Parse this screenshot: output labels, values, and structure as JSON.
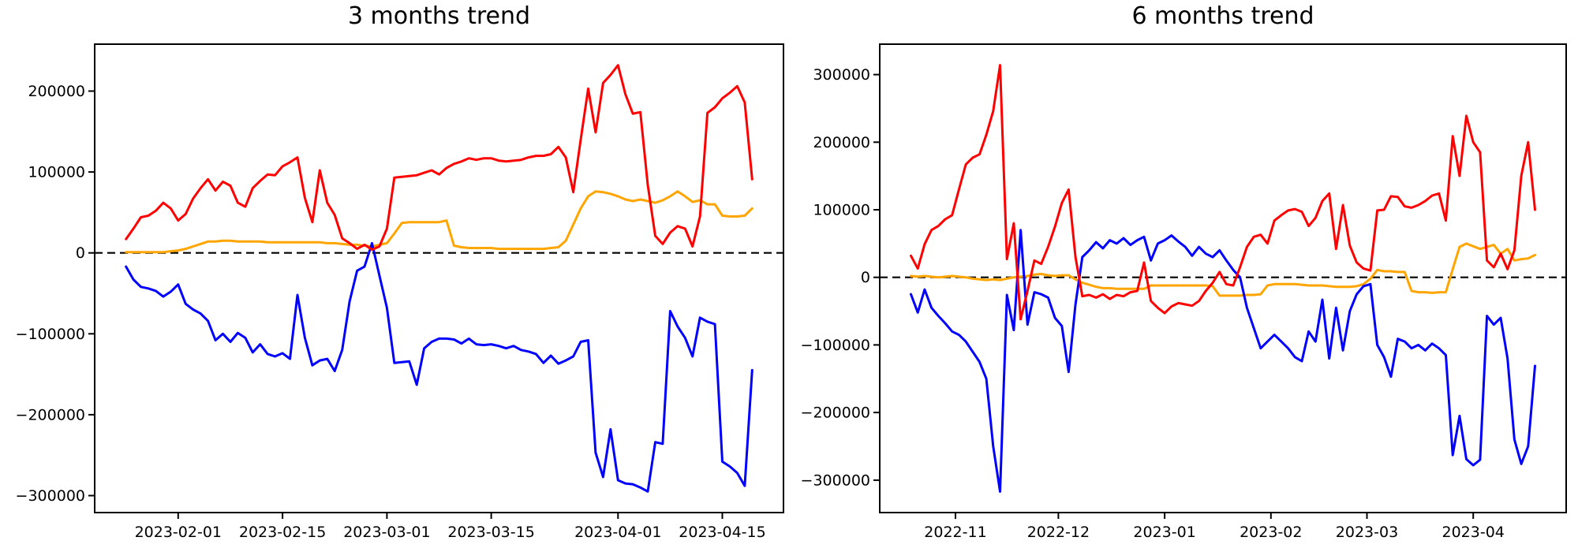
{
  "page": {
    "background": "#ffffff",
    "text_color": "#000000"
  },
  "chart_data": [
    {
      "type": "line",
      "title": "3 months trend",
      "start_date": "2023-01-25",
      "step_days": 1,
      "grid": false,
      "legend": "none",
      "zero_line": {
        "style": "dashed",
        "color": "#000000"
      },
      "x_axis": {
        "lim": [
          -4.2,
          88.2
        ],
        "ticks": [
          {
            "day": 7,
            "label": "2023-02-01"
          },
          {
            "day": 21,
            "label": "2023-02-15"
          },
          {
            "day": 35,
            "label": "2023-03-01"
          },
          {
            "day": 49,
            "label": "2023-03-15"
          },
          {
            "day": 66,
            "label": "2023-04-01"
          },
          {
            "day": 80,
            "label": "2023-04-15"
          }
        ]
      },
      "y_axis": {
        "lim": [
          -321000,
          258000
        ],
        "ticks": [
          {
            "value": 200000,
            "label": "200000"
          },
          {
            "value": 100000,
            "label": "100000"
          },
          {
            "value": 0,
            "label": "0"
          },
          {
            "value": -100000,
            "label": "−100000"
          },
          {
            "value": -200000,
            "label": "−200000"
          },
          {
            "value": -300000,
            "label": "−300000"
          }
        ]
      },
      "series": [
        {
          "name": "orange",
          "color": "#ffa500",
          "values": [
            1000,
            1000,
            1000,
            1000,
            1000,
            1000,
            2000,
            3000,
            5000,
            8000,
            11000,
            14000,
            14000,
            15000,
            15000,
            14000,
            14000,
            14000,
            14000,
            13000,
            13000,
            13000,
            13000,
            13000,
            13000,
            13000,
            13000,
            12000,
            12000,
            11000,
            10000,
            10000,
            9000,
            8000,
            10000,
            12000,
            24000,
            37000,
            38000,
            38000,
            38000,
            38000,
            38000,
            40000,
            9000,
            7000,
            6000,
            6000,
            6000,
            6000,
            5000,
            5000,
            5000,
            5000,
            5000,
            5000,
            5000,
            6000,
            7000,
            15000,
            35000,
            55000,
            70000,
            76000,
            75000,
            73000,
            70000,
            66000,
            64000,
            66000,
            64000,
            62000,
            65000,
            70000,
            76000,
            70000,
            63000,
            65000,
            60000,
            60000,
            46000,
            45000,
            45000,
            46000,
            55000
          ]
        },
        {
          "name": "blue",
          "color": "#0000ff",
          "values": [
            -17000,
            -33000,
            -42000,
            -44000,
            -47000,
            -54000,
            -48000,
            -39000,
            -63000,
            -70000,
            -75000,
            -84000,
            -108000,
            -100000,
            -110000,
            -99000,
            -105000,
            -123000,
            -113000,
            -125000,
            -128000,
            -124000,
            -131000,
            -52000,
            -105000,
            -139000,
            -133000,
            -131000,
            -146000,
            -120000,
            -60000,
            -22000,
            -17000,
            12000,
            -28000,
            -68000,
            -136000,
            -135000,
            -134000,
            -163000,
            -118000,
            -110000,
            -106000,
            -106000,
            -107000,
            -112000,
            -106000,
            -113000,
            -114000,
            -113000,
            -115000,
            -118000,
            -115000,
            -120000,
            -122000,
            -125000,
            -136000,
            -127000,
            -137000,
            -133000,
            -128000,
            -110000,
            -108000,
            -247000,
            -277000,
            -218000,
            -281000,
            -285000,
            -286000,
            -290000,
            -295000,
            -234000,
            -236000,
            -72000,
            -91000,
            -105000,
            -128000,
            -80000,
            -85000,
            -88000,
            -258000,
            -264000,
            -272000,
            -288000,
            -145000
          ]
        },
        {
          "name": "red",
          "color": "#ff0000",
          "values": [
            17000,
            30000,
            44000,
            46000,
            52000,
            62000,
            55000,
            40000,
            48000,
            67000,
            80000,
            91000,
            77000,
            88000,
            83000,
            62000,
            57000,
            80000,
            89000,
            97000,
            96000,
            107000,
            112000,
            118000,
            68000,
            38000,
            102000,
            62000,
            47000,
            18000,
            12000,
            5000,
            10000,
            4000,
            8000,
            30000,
            93000,
            94000,
            95000,
            96000,
            99000,
            102000,
            97000,
            105000,
            110000,
            113000,
            117000,
            115000,
            117000,
            117000,
            114000,
            113000,
            114000,
            115000,
            118000,
            120000,
            120000,
            122000,
            131000,
            118000,
            75000,
            140000,
            203000,
            149000,
            210000,
            220000,
            232000,
            196000,
            172000,
            174000,
            84000,
            21000,
            11000,
            25000,
            33000,
            30000,
            8000,
            45000,
            173000,
            180000,
            191000,
            198000,
            206000,
            186000,
            91000
          ]
        }
      ]
    },
    {
      "type": "line",
      "title": "6 months trend",
      "start_date": "2022-10-19",
      "step_days": 2,
      "grid": false,
      "legend": "none",
      "zero_line": {
        "style": "dashed",
        "color": "#000000"
      },
      "x_axis": {
        "lim": [
          -9.1,
          191.1
        ],
        "ticks": [
          {
            "day": 13,
            "label": "2022-11"
          },
          {
            "day": 43,
            "label": "2022-12"
          },
          {
            "day": 74,
            "label": "2023-01"
          },
          {
            "day": 105,
            "label": "2023-02"
          },
          {
            "day": 133,
            "label": "2023-03"
          },
          {
            "day": 164,
            "label": "2023-04"
          }
        ]
      },
      "y_axis": {
        "lim": [
          -348000,
          345000
        ],
        "ticks": [
          {
            "value": 300000,
            "label": "300000"
          },
          {
            "value": 200000,
            "label": "200000"
          },
          {
            "value": 100000,
            "label": "100000"
          },
          {
            "value": 0,
            "label": "0"
          },
          {
            "value": -100000,
            "label": "−100000"
          },
          {
            "value": -200000,
            "label": "−200000"
          },
          {
            "value": -300000,
            "label": "−300000"
          }
        ]
      },
      "series": [
        {
          "name": "orange",
          "color": "#ffa500",
          "values": [
            2000,
            1000,
            2000,
            1000,
            0,
            1000,
            2000,
            1000,
            0,
            -2000,
            -3000,
            -4000,
            -3000,
            -4000,
            -2000,
            0,
            1000,
            2000,
            4000,
            5000,
            3000,
            2000,
            3000,
            3000,
            -3000,
            -8000,
            -11000,
            -14000,
            -16000,
            -16000,
            -17000,
            -17000,
            -17000,
            -17000,
            -17000,
            -12000,
            -12000,
            -12000,
            -12000,
            -12000,
            -12000,
            -12000,
            -12000,
            -12000,
            -13000,
            -27000,
            -27000,
            -27000,
            -27000,
            -26000,
            -26000,
            -25000,
            -12000,
            -10000,
            -10000,
            -10000,
            -10000,
            -11000,
            -12000,
            -12000,
            -12000,
            -13000,
            -14000,
            -14000,
            -14000,
            -13000,
            -10000,
            -2000,
            11000,
            9000,
            9000,
            8000,
            8000,
            -20000,
            -22000,
            -22000,
            -23000,
            -22000,
            -22000,
            12000,
            45000,
            50000,
            46000,
            42000,
            45000,
            48000,
            35000,
            42000,
            25000,
            27000,
            28000,
            33000
          ]
        },
        {
          "name": "blue",
          "color": "#0000ff",
          "values": [
            -25000,
            -52000,
            -18000,
            -45000,
            -57000,
            -68000,
            -80000,
            -85000,
            -95000,
            -110000,
            -125000,
            -150000,
            -250000,
            -317000,
            -26000,
            -78000,
            70000,
            -70000,
            -22000,
            -25000,
            -30000,
            -60000,
            -72000,
            -140000,
            -40000,
            30000,
            40000,
            52000,
            43000,
            55000,
            50000,
            58000,
            48000,
            55000,
            60000,
            25000,
            50000,
            55000,
            62000,
            53000,
            45000,
            32000,
            45000,
            35000,
            30000,
            40000,
            25000,
            11000,
            0,
            -45000,
            -75000,
            -105000,
            -95000,
            -85000,
            -95000,
            -105000,
            -118000,
            -124000,
            -80000,
            -95000,
            -33000,
            -120000,
            -45000,
            -108000,
            -50000,
            -25000,
            -13000,
            -10000,
            -100000,
            -118000,
            -147000,
            -91000,
            -95000,
            -105000,
            -100000,
            -108000,
            -98000,
            -105000,
            -115000,
            -263000,
            -205000,
            -269000,
            -278000,
            -270000,
            -57000,
            -70000,
            -60000,
            -120000,
            -240000,
            -276000,
            -250000,
            -131000
          ]
        },
        {
          "name": "red",
          "color": "#ff0000",
          "values": [
            32000,
            13000,
            49000,
            70000,
            76000,
            86000,
            92000,
            130000,
            167000,
            177000,
            182000,
            211000,
            246000,
            314000,
            27000,
            80000,
            -62000,
            -20000,
            25000,
            20000,
            45000,
            75000,
            110000,
            130000,
            30000,
            -28000,
            -26000,
            -30000,
            -25000,
            -32000,
            -26000,
            -28000,
            -22000,
            -20000,
            22000,
            -35000,
            -45000,
            -53000,
            -43000,
            -38000,
            -40000,
            -42000,
            -35000,
            -20000,
            -8000,
            8000,
            -10000,
            -12000,
            15000,
            45000,
            60000,
            63000,
            50000,
            84000,
            92000,
            99000,
            101000,
            97000,
            76000,
            88000,
            113000,
            124000,
            42000,
            107000,
            47000,
            22000,
            13000,
            10000,
            99000,
            100000,
            120000,
            119000,
            105000,
            103000,
            107000,
            113000,
            121000,
            124000,
            84000,
            209000,
            150000,
            239000,
            200000,
            185000,
            25000,
            15000,
            35000,
            12000,
            40000,
            150000,
            200000,
            100000
          ]
        }
      ]
    }
  ]
}
